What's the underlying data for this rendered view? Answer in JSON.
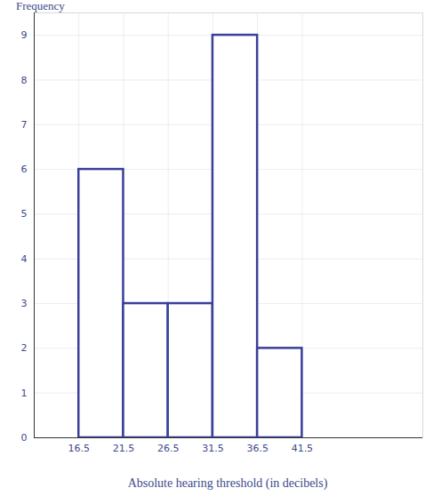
{
  "chart_data": {
    "type": "histogram",
    "y_label": "Frequency",
    "x_label": "Absolute hearing threshold  (in decibels)",
    "bins": [
      16.5,
      21.5,
      26.5,
      31.5,
      36.5,
      41.5
    ],
    "values": [
      6,
      3,
      3,
      9,
      2
    ],
    "color": "#3a3f9a",
    "xlim": [
      11.5,
      55
    ],
    "ylim": [
      0,
      9.5
    ],
    "xticks": [
      16.5,
      21.5,
      26.5,
      31.5,
      36.5,
      41.5
    ],
    "yticks": [
      0,
      1,
      2,
      3,
      4,
      5,
      6,
      7,
      8,
      9
    ],
    "grid": true
  }
}
